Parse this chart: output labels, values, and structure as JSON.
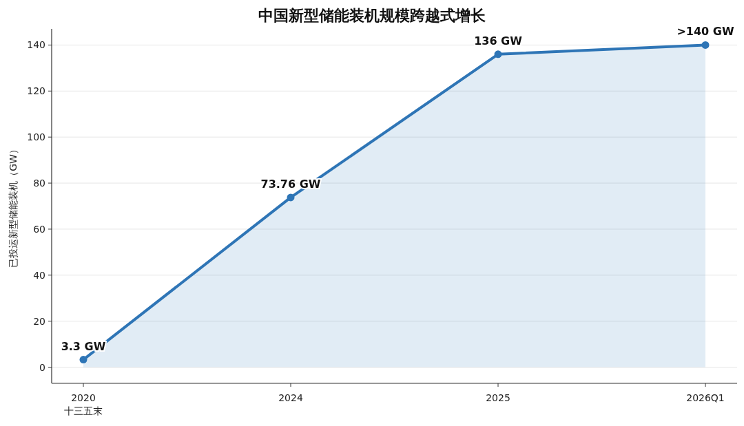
{
  "chart_data": {
    "type": "area",
    "title": "中国新型储能装机规模跨越式增长",
    "ylabel": "已投运新型储能装机（GW）",
    "categories": [
      "2020\n十三五末",
      "2024",
      "2025",
      "2026Q1"
    ],
    "series": [
      {
        "color": "#2e75b6",
        "values": [
          3.3,
          73.76,
          136,
          140
        ],
        "value_labels": [
          "3.3 GW",
          "73.76 GW",
          "136 GW",
          ">140 GW"
        ]
      }
    ],
    "ylim": [
      -7,
      147
    ],
    "yticks": [
      0,
      20,
      40,
      60,
      80,
      100,
      120,
      140
    ],
    "grid": "y",
    "marker": "circle"
  }
}
